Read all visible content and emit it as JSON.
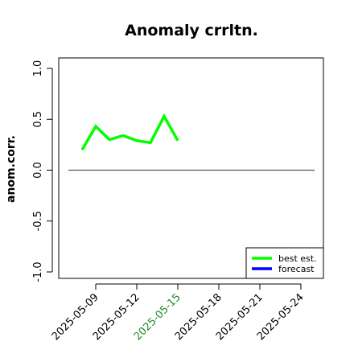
{
  "chart_data": {
    "type": "line",
    "title": "Anomaly crrltn.",
    "xlabel": "",
    "ylabel": "anom.corr.",
    "xlim": [
      "2025-05-07",
      "2025-05-25"
    ],
    "ylim": [
      -1.0,
      1.0
    ],
    "yticks": [
      -1.0,
      -0.5,
      0.0,
      0.5,
      1.0
    ],
    "ytick_labels": [
      "-1.0",
      "-0.5",
      "0.0",
      "0.5",
      "1.0"
    ],
    "xticks": [
      "2025-05-09",
      "2025-05-12",
      "2025-05-15",
      "2025-05-18",
      "2025-05-21",
      "2025-05-24"
    ],
    "xtick_labels": [
      "2025-05-09",
      "2025-05-12",
      "2025-05-15",
      "2025-05-18",
      "2025-05-21",
      "2025-05-24"
    ],
    "highlighted_xtick": "2025-05-15",
    "highlight_color": "#228b22",
    "reference_line": {
      "y": 0.0,
      "color": "#555555"
    },
    "series": [
      {
        "name": "best est.",
        "color": "#00ff00",
        "x": [
          "2025-05-08",
          "2025-05-09",
          "2025-05-10",
          "2025-05-11",
          "2025-05-12",
          "2025-05-13",
          "2025-05-14",
          "2025-05-15"
        ],
        "y": [
          0.2,
          0.43,
          0.3,
          0.34,
          0.29,
          0.27,
          0.53,
          0.29
        ]
      },
      {
        "name": "forecast",
        "color": "#0000ff",
        "x": [],
        "y": []
      }
    ],
    "legend_position": "bottom-right",
    "grid": false
  }
}
